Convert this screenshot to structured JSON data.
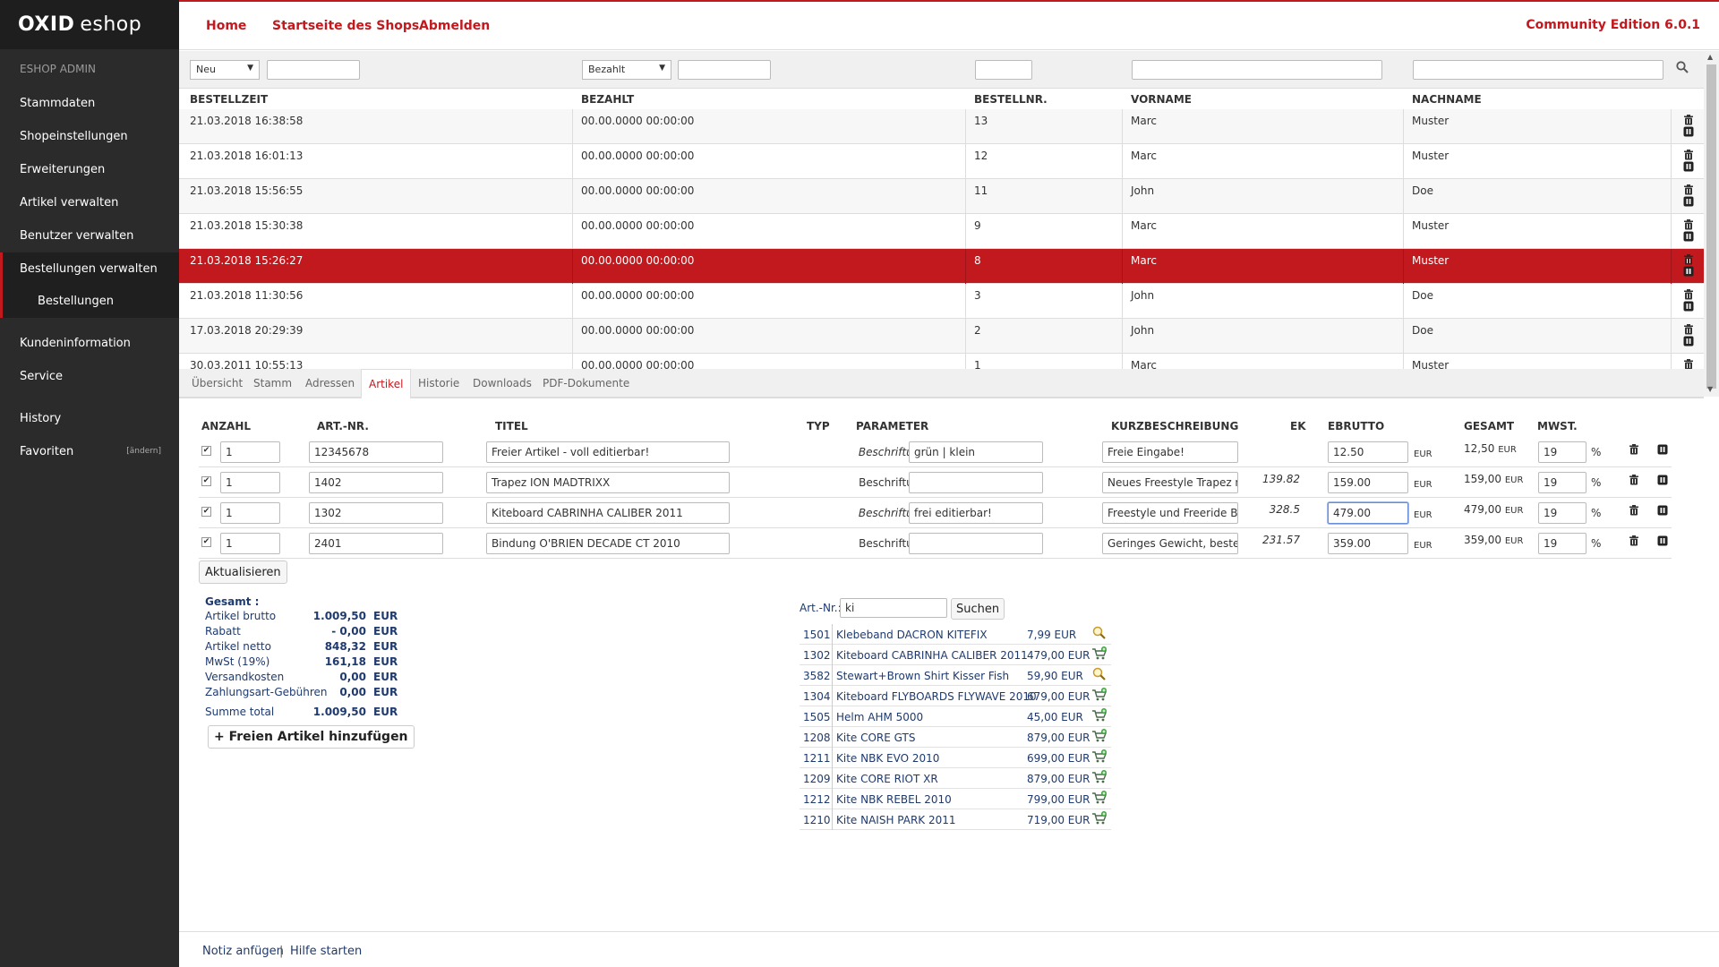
{
  "brand": {
    "logo_a": "OXID",
    "logo_b": "eshop"
  },
  "sidebar": {
    "header": "ESHOP ADMIN",
    "items": [
      {
        "label": "Stammdaten"
      },
      {
        "label": "Shopeinstellungen"
      },
      {
        "label": "Erweiterungen"
      },
      {
        "label": "Artikel verwalten"
      },
      {
        "label": "Benutzer verwalten"
      },
      {
        "label": "Bestellungen verwalten"
      }
    ],
    "sub_item": "Bestellungen",
    "items2": [
      {
        "label": "Kundeninformation"
      },
      {
        "label": "Service"
      }
    ],
    "history": "History",
    "favoriten": "Favoriten",
    "aendern": "[ändern]"
  },
  "topnav": {
    "home": "Home",
    "startseite": "Startseite des Shops",
    "abmelden": "Abmelden",
    "edition": "Community Edition 6.0.1"
  },
  "filters": {
    "status_select": "Neu",
    "status_input": "",
    "bezahlt_select": "Bezahlt",
    "bezahlt_input": "",
    "nr_input": "",
    "vorname_input": "",
    "nachname_input": ""
  },
  "orders": {
    "columns": [
      "BESTELLZEIT",
      "BEZAHLT",
      "BESTELLNR.",
      "VORNAME",
      "NACHNAME"
    ],
    "rows": [
      {
        "zeit": "21.03.2018 16:38:58",
        "bezahlt": "00.00.0000 00:00:00",
        "nr": "13",
        "vorname": "Marc",
        "nachname": "Muster"
      },
      {
        "zeit": "21.03.2018 16:01:13",
        "bezahlt": "00.00.0000 00:00:00",
        "nr": "12",
        "vorname": "Marc",
        "nachname": "Muster"
      },
      {
        "zeit": "21.03.2018 15:56:55",
        "bezahlt": "00.00.0000 00:00:00",
        "nr": "11",
        "vorname": "John",
        "nachname": "Doe"
      },
      {
        "zeit": "21.03.2018 15:30:38",
        "bezahlt": "00.00.0000 00:00:00",
        "nr": "9",
        "vorname": "Marc",
        "nachname": "Muster"
      },
      {
        "zeit": "21.03.2018 15:26:27",
        "bezahlt": "00.00.0000 00:00:00",
        "nr": "8",
        "vorname": "Marc",
        "nachname": "Muster",
        "selected": true
      },
      {
        "zeit": "21.03.2018 11:30:56",
        "bezahlt": "00.00.0000 00:00:00",
        "nr": "3",
        "vorname": "John",
        "nachname": "Doe"
      },
      {
        "zeit": "17.03.2018 20:29:39",
        "bezahlt": "00.00.0000 00:00:00",
        "nr": "2",
        "vorname": "John",
        "nachname": "Doe"
      },
      {
        "zeit": "30.03.2011 10:55:13",
        "bezahlt": "00.00.0000 00:00:00",
        "nr": "1",
        "vorname": "Marc",
        "nachname": "Muster"
      }
    ]
  },
  "tabs": [
    "Übersicht",
    "Stamm",
    "Adressen",
    "Artikel",
    "Historie",
    "Downloads",
    "PDF-Dokumente"
  ],
  "articles": {
    "columns": [
      "ANZAHL",
      "ART.-NR.",
      "TITEL",
      "TYP",
      "PARAMETER",
      "KURZBESCHREIBUNG",
      "EK",
      "EBRUTTO",
      "GESAMT",
      "MWST."
    ],
    "rows": [
      {
        "anzahl": "1",
        "artnr": "12345678",
        "titel": "Freier Artikel - voll editierbar!",
        "param_label": "Beschriftung",
        "param_italic": true,
        "param": "grün | klein",
        "kurz": "Freie Eingabe!",
        "ek": "",
        "ebrutto": "12.50",
        "gesamt": "12,50",
        "mwst": "19"
      },
      {
        "anzahl": "1",
        "artnr": "1402",
        "titel": "Trapez ION MADTRIXX",
        "param_label": "Beschriftung",
        "param_italic": false,
        "param": "",
        "kurz": "Neues Freestyle Trapez mit",
        "ek": "139.82",
        "ebrutto": "159.00",
        "gesamt": "159,00",
        "mwst": "19"
      },
      {
        "anzahl": "1",
        "artnr": "1302",
        "titel": "Kiteboard CABRINHA CALIBER 2011",
        "param_label": "Beschriftung",
        "param_italic": true,
        "param": "frei editierbar!",
        "kurz": "Freestyle und Freeride Boa",
        "ek": "328.5",
        "ebrutto": "479.00",
        "gesamt": "479,00",
        "mwst": "19"
      },
      {
        "anzahl": "1",
        "artnr": "2401",
        "titel": "Bindung O'BRIEN DECADE CT 2010",
        "param_label": "Beschriftung",
        "param_italic": false,
        "param": "",
        "kurz": "Geringes Gewicht, beste Pe",
        "ek": "231.57",
        "ebrutto": "359.00",
        "gesamt": "359,00",
        "mwst": "19"
      }
    ],
    "eur": "EUR",
    "percent": "%",
    "update_button": "Aktualisieren"
  },
  "totals": {
    "title": "Gesamt :",
    "rows": [
      {
        "label": "Artikel brutto",
        "value": "1.009,50",
        "cur": "EUR"
      },
      {
        "label": "Rabatt",
        "value": "- 0,00",
        "cur": "EUR"
      },
      {
        "label": "Artikel netto",
        "value": "848,32",
        "cur": "EUR"
      },
      {
        "label": "MwSt (19%)",
        "value": "161,18",
        "cur": "EUR"
      },
      {
        "label": "Versandkosten",
        "value": "0,00",
        "cur": "EUR"
      },
      {
        "label": "Zahlungsart-Gebühren",
        "value": "0,00",
        "cur": "EUR"
      }
    ],
    "sum": {
      "label": "Summe total",
      "value": "1.009,50",
      "cur": "EUR"
    },
    "add_button": "+ Freien Artikel hinzufügen"
  },
  "product_search": {
    "label": "Art.-Nr.:",
    "value": "ki",
    "button": "Suchen",
    "results": [
      {
        "nr": "1501",
        "name": "Klebeband DACRON KITEFIX",
        "price": "7,99 EUR",
        "icon": "magnifier"
      },
      {
        "nr": "1302",
        "name": "Kiteboard CABRINHA CALIBER 2011",
        "price": "479,00 EUR",
        "icon": "cart"
      },
      {
        "nr": "3582",
        "name": "Stewart+Brown Shirt Kisser Fish",
        "price": "59,90 EUR",
        "icon": "magnifier"
      },
      {
        "nr": "1304",
        "name": "Kiteboard FLYBOARDS FLYWAVE 2010",
        "price": "679,00 EUR",
        "icon": "cart"
      },
      {
        "nr": "1505",
        "name": "Helm AHM 5000",
        "price": "45,00 EUR",
        "icon": "cart"
      },
      {
        "nr": "1208",
        "name": "Kite CORE GTS",
        "price": "879,00 EUR",
        "icon": "cart"
      },
      {
        "nr": "1211",
        "name": "Kite NBK EVO 2010",
        "price": "699,00 EUR",
        "icon": "cart"
      },
      {
        "nr": "1209",
        "name": "Kite CORE RIOT XR",
        "price": "879,00 EUR",
        "icon": "cart"
      },
      {
        "nr": "1212",
        "name": "Kite NBK REBEL 2010",
        "price": "799,00 EUR",
        "icon": "cart"
      },
      {
        "nr": "1210",
        "name": "Kite NAISH PARK 2011",
        "price": "719,00 EUR",
        "icon": "cart"
      }
    ]
  },
  "footer": {
    "note": "Notiz anfügen",
    "sep": "|",
    "help": "Hilfe starten"
  },
  "colors": {
    "accent": "#c1191e",
    "sidebar": "#2b2b2b",
    "text_blue": "#1e3a6e"
  }
}
